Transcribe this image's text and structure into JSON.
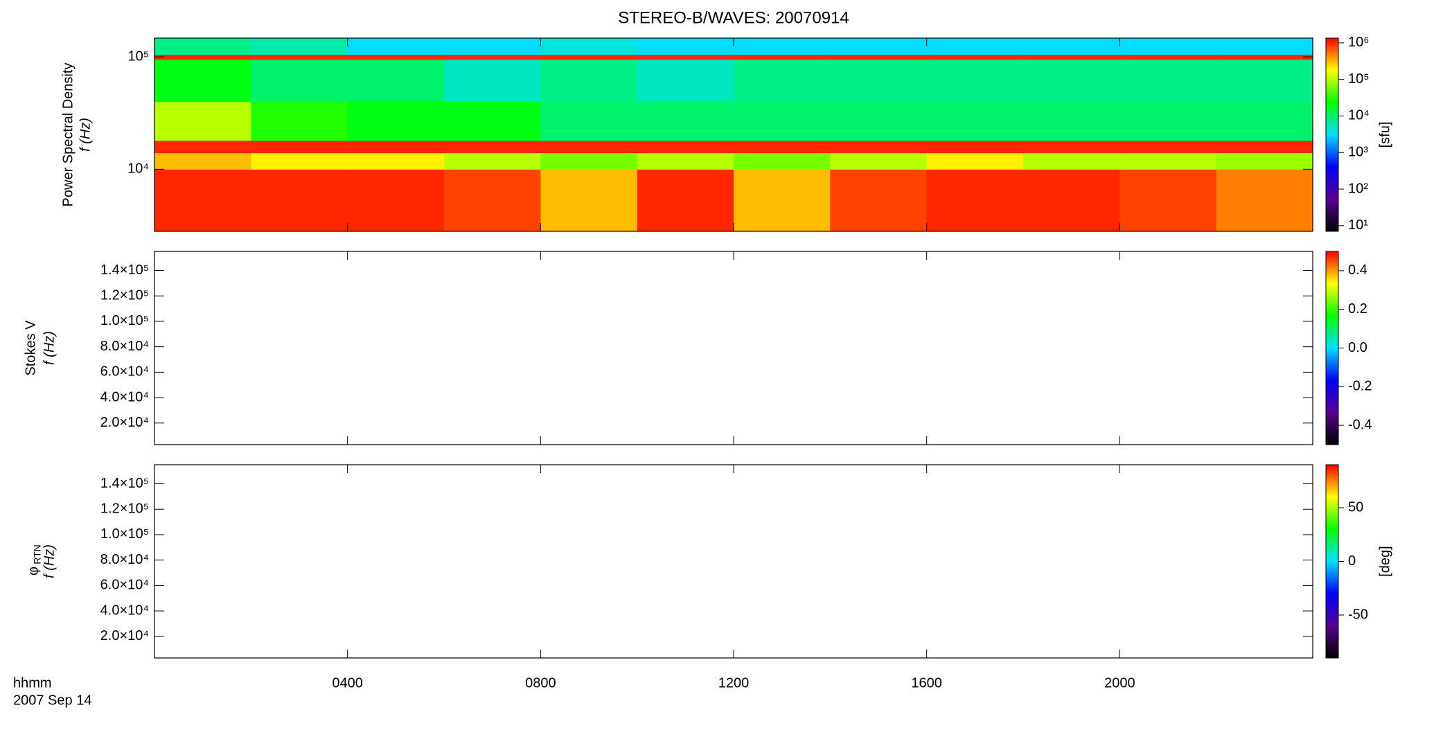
{
  "chart_data": [
    {
      "type": "heatmap",
      "title": "STEREO-B/WAVES: 20070914",
      "ylabel": "Power Spectral Density",
      "ylabel2": "f (Hz)",
      "ylog": true,
      "ylim": [
        2800,
        147000
      ],
      "yticks": [
        {
          "value": 10000,
          "label": "10⁴"
        },
        {
          "value": 100000,
          "label": "10⁵"
        }
      ],
      "x_edges": [
        0,
        2,
        4,
        6,
        8,
        10,
        12,
        14,
        16,
        18,
        20,
        22,
        24
      ],
      "y_edges": [
        2800,
        10000,
        14000,
        18000,
        40000,
        95000,
        105000,
        147000
      ],
      "values": [
        [
          1000000,
          1000000,
          1000000,
          800000,
          300000,
          1000000,
          300000,
          800000,
          1000000,
          1000000,
          800000,
          500000
        ],
        [
          300000,
          200000,
          200000,
          100000,
          60000,
          100000,
          60000,
          100000,
          200000,
          100000,
          100000,
          80000
        ],
        [
          1000000,
          1000000,
          1000000,
          1000000,
          1000000,
          1000000,
          1000000,
          1000000,
          1000000,
          1000000,
          1000000,
          1000000
        ],
        [
          100000,
          30000,
          20000,
          20000,
          10000,
          10000,
          10000,
          10000,
          10000,
          10000,
          10000,
          10000
        ],
        [
          20000,
          10000,
          10000,
          5000,
          8000,
          5000,
          8000,
          8000,
          8000,
          8000,
          8000,
          8000
        ],
        [
          1000000,
          1000000,
          1000000,
          1000000,
          1000000,
          1000000,
          1000000,
          1000000,
          1000000,
          1000000,
          1000000,
          1000000
        ],
        [
          8000,
          6000,
          3000,
          3000,
          4000,
          3000,
          3000,
          3000,
          3000,
          3000,
          3000,
          3000
        ]
      ],
      "colormap": [
        "#000000",
        "#5a0090",
        "#0000ff",
        "#00e0ff",
        "#00ff00",
        "#ffff00",
        "#ff0000"
      ],
      "clog": true,
      "clim": [
        7,
        1350000
      ],
      "clabel": "[sfu]",
      "cticks": [
        {
          "value": 10,
          "label": "10¹"
        },
        {
          "value": 100,
          "label": "10²"
        },
        {
          "value": 1000,
          "label": "10³"
        },
        {
          "value": 10000,
          "label": "10⁴"
        },
        {
          "value": 100000,
          "label": "10⁵"
        },
        {
          "value": 1000000,
          "label": "10⁶"
        }
      ]
    },
    {
      "type": "heatmap",
      "ylabel": "Stokes V",
      "ylabel2": "f (Hz)",
      "ylim": [
        3000,
        155000
      ],
      "yticks": [
        {
          "value": 20000,
          "label": "2.0×10⁴"
        },
        {
          "value": 40000,
          "label": "4.0×10⁴"
        },
        {
          "value": 60000,
          "label": "6.0×10⁴"
        },
        {
          "value": 80000,
          "label": "8.0×10⁴"
        },
        {
          "value": 100000,
          "label": "1.0×10⁵"
        },
        {
          "value": 120000,
          "label": "1.2×10⁵"
        },
        {
          "value": 140000,
          "label": "1.4×10⁵"
        }
      ],
      "clim": [
        -0.5,
        0.5
      ],
      "cticks": [
        -0.4,
        -0.2,
        {
          "value": 0,
          "label": "0.0"
        },
        0.2,
        0.4
      ]
    },
    {
      "type": "heatmap",
      "ylabel": {
        "symbol": "φ",
        "subscript": "RTN"
      },
      "ylabel2": "f (Hz)",
      "ylim": [
        3000,
        155000
      ],
      "yticks": [
        {
          "value": 20000,
          "label": "2.0×10⁴"
        },
        {
          "value": 40000,
          "label": "4.0×10⁴"
        },
        {
          "value": 60000,
          "label": "6.0×10⁴"
        },
        {
          "value": 80000,
          "label": "8.0×10⁴"
        },
        {
          "value": 100000,
          "label": "1.0×10⁵"
        },
        {
          "value": 120000,
          "label": "1.2×10⁵"
        },
        {
          "value": 140000,
          "label": "1.4×10⁵"
        }
      ],
      "clim": [
        -90,
        90
      ],
      "clabel": "[deg]",
      "cticks": [
        -50,
        0,
        50
      ],
      "xlim": [
        0,
        24
      ],
      "xticks": [
        {
          "value": 4,
          "label": "0400"
        },
        {
          "value": 8,
          "label": "0800"
        },
        {
          "value": 12,
          "label": "1200"
        },
        {
          "value": 16,
          "label": "1600"
        },
        {
          "value": 20,
          "label": "2000"
        }
      ],
      "xlabel": "hhmm",
      "date_label": "2007 Sep 14"
    }
  ]
}
